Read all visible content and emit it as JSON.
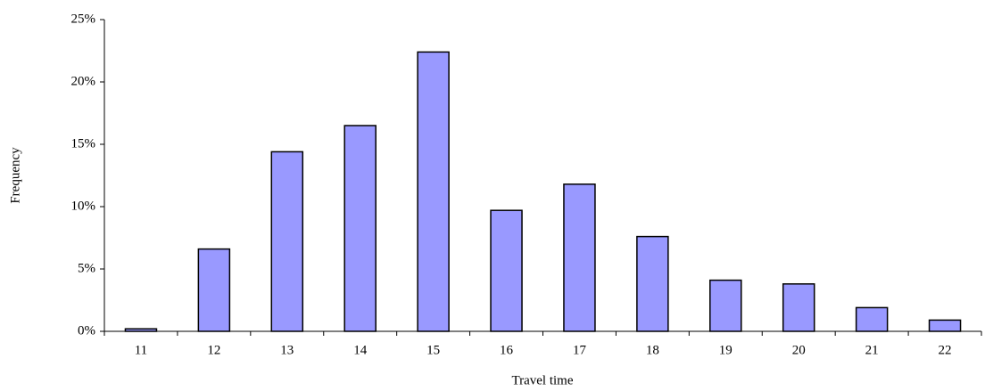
{
  "chart_data": {
    "type": "bar",
    "x_label": "Travel time",
    "y_label": "Frequency",
    "categories": [
      "11",
      "12",
      "13",
      "14",
      "15",
      "16",
      "17",
      "18",
      "19",
      "20",
      "21",
      "22"
    ],
    "values": [
      0.2,
      6.6,
      14.4,
      16.5,
      22.4,
      9.7,
      11.8,
      7.6,
      4.1,
      3.8,
      1.9,
      0.9
    ],
    "color": "#9999ff",
    "ylim": [
      0,
      25
    ],
    "yticks": [
      {
        "value": 0,
        "label": "0%"
      },
      {
        "value": 5,
        "label": "5%"
      },
      {
        "value": 10,
        "label": "10%"
      },
      {
        "value": 15,
        "label": "15%"
      },
      {
        "value": 20,
        "label": "20%"
      },
      {
        "value": 25,
        "label": "25%"
      }
    ],
    "grid": false
  }
}
